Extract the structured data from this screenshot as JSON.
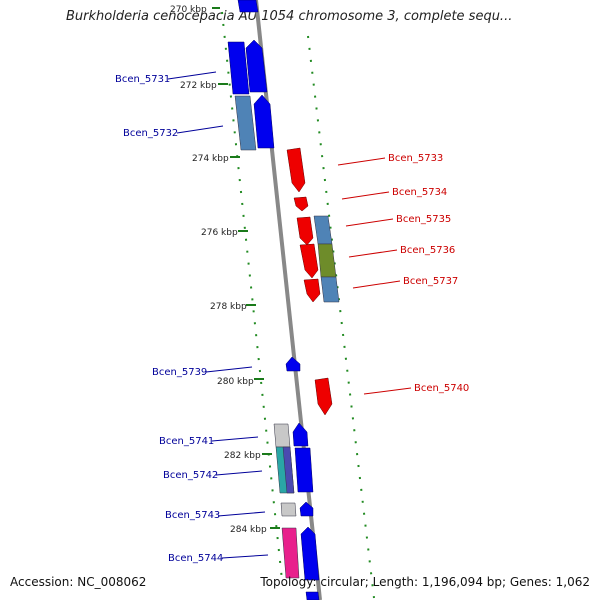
{
  "title": "Burkholderia cenocepacia AU 1054 chromosome 3, complete sequ...",
  "footer": {
    "accession": "Accession: NC_008062",
    "summary": "Topology: circular; Length: 1,196,094 bp; Genes: 1,062"
  },
  "colors": {
    "backbone": "#888888",
    "forward": "#0000ee",
    "reverse": "#ee0000",
    "cog_blue": "#4f83b6",
    "cog_olive": "#6e8c2a",
    "cog_gray": "#c8c8c8",
    "cog_teal": "#2aa6a6",
    "cog_pink": "#e8208c",
    "gc_dots": "#228b22",
    "label_forward": "#000099",
    "label_reverse": "#cc0000"
  },
  "kbp_labels": [
    "270 kbp",
    "272 kbp",
    "274 kbp",
    "276 kbp",
    "278 kbp",
    "280 kbp",
    "282 kbp",
    "284 kbp"
  ],
  "gene_labels_left": [
    "Bcen_5731",
    "Bcen_5732",
    "Bcen_5739",
    "Bcen_5741",
    "Bcen_5742",
    "Bcen_5743",
    "Bcen_5744"
  ],
  "gene_labels_right": [
    "Bcen_5733",
    "Bcen_5734",
    "Bcen_5735",
    "Bcen_5736",
    "Bcen_5737",
    "Bcen_5740"
  ]
}
